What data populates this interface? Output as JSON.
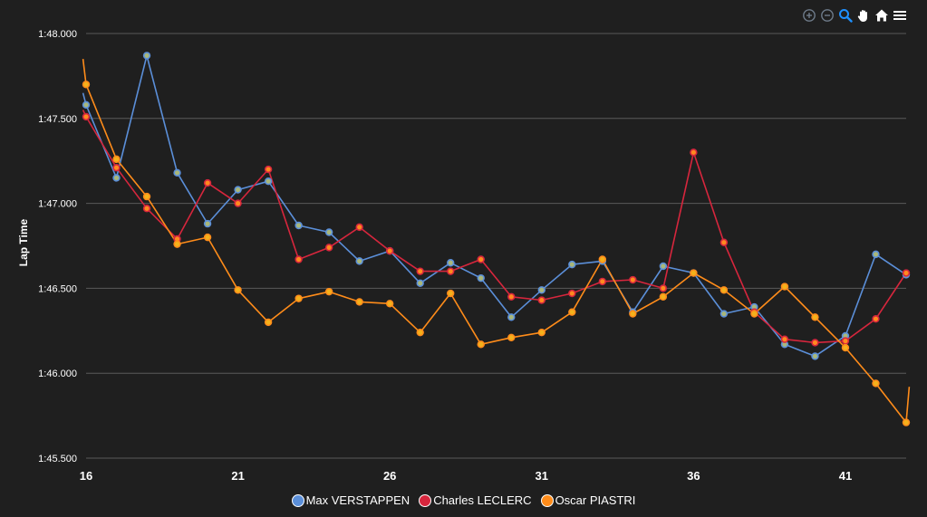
{
  "toolbar": {
    "icons": [
      "zoom-in-icon",
      "zoom-out-icon",
      "selection-zoom-icon",
      "pan-icon",
      "home-icon",
      "menu-icon"
    ],
    "active_color": "#1e90ff",
    "color": "#6e7b8a"
  },
  "chart_data": {
    "type": "line",
    "title": "",
    "xlabel": "",
    "ylabel": "Lap Time",
    "xlim": [
      16,
      43
    ],
    "ylim": [
      105.5,
      108.0
    ],
    "x_ticks": [
      16,
      21,
      26,
      31,
      36,
      41
    ],
    "y_ticks": [
      {
        "value": 108.0,
        "label": "1:48.000"
      },
      {
        "value": 107.5,
        "label": "1:47.500"
      },
      {
        "value": 107.0,
        "label": "1:47.000"
      },
      {
        "value": 106.5,
        "label": "1:46.500"
      },
      {
        "value": 106.0,
        "label": "1:46.000"
      },
      {
        "value": 105.5,
        "label": "1:45.500"
      }
    ],
    "grid": "horizontal",
    "legend_position": "bottom-center",
    "series": [
      {
        "name": "Max VERSTAPPEN",
        "color": "#5b8fd9",
        "marker_color": "#a9b77a",
        "lead_in": 107.65,
        "trail_out": null,
        "points": [
          [
            16,
            107.58
          ],
          [
            17,
            107.15
          ],
          [
            18,
            107.87
          ],
          [
            19,
            107.18
          ],
          [
            20,
            106.88
          ],
          [
            21,
            107.08
          ],
          [
            22,
            107.13
          ],
          [
            23,
            106.87
          ],
          [
            24,
            106.83
          ],
          [
            25,
            106.66
          ],
          [
            26,
            106.72
          ],
          [
            27,
            106.53
          ],
          [
            28,
            106.65
          ],
          [
            29,
            106.56
          ],
          [
            30,
            106.33
          ],
          [
            31,
            106.49
          ],
          [
            32,
            106.64
          ],
          [
            33,
            106.66
          ],
          [
            34,
            106.36
          ],
          [
            35,
            106.63
          ],
          [
            36,
            106.59
          ],
          [
            37,
            106.35
          ],
          [
            38,
            106.39
          ],
          [
            39,
            106.17
          ],
          [
            40,
            106.1
          ],
          [
            41,
            106.22
          ],
          [
            42,
            106.7
          ],
          [
            43,
            106.58
          ]
        ]
      },
      {
        "name": "Charles LECLERC",
        "color": "#d7263d",
        "marker_color": "#ff8a1f",
        "lead_in": 107.55,
        "trail_out": null,
        "points": [
          [
            16,
            107.51
          ],
          [
            17,
            107.21
          ],
          [
            18,
            106.97
          ],
          [
            19,
            106.79
          ],
          [
            20,
            107.12
          ],
          [
            21,
            107.0
          ],
          [
            22,
            107.2
          ],
          [
            23,
            106.67
          ],
          [
            24,
            106.74
          ],
          [
            25,
            106.86
          ],
          [
            26,
            106.72
          ],
          [
            27,
            106.6
          ],
          [
            28,
            106.6
          ],
          [
            29,
            106.67
          ],
          [
            30,
            106.45
          ],
          [
            31,
            106.43
          ],
          [
            32,
            106.47
          ],
          [
            33,
            106.54
          ],
          [
            34,
            106.55
          ],
          [
            35,
            106.5
          ],
          [
            36,
            107.3
          ],
          [
            37,
            106.77
          ],
          [
            38,
            106.36
          ],
          [
            39,
            106.2
          ],
          [
            40,
            106.18
          ],
          [
            41,
            106.19
          ],
          [
            42,
            106.32
          ],
          [
            43,
            106.59
          ]
        ]
      },
      {
        "name": "Oscar PIASTRI",
        "color": "#ff8c1a",
        "marker_color": "#f3b21c",
        "lead_in": 107.85,
        "trail_out": 105.92,
        "points": [
          [
            16,
            107.7
          ],
          [
            17,
            107.26
          ],
          [
            18,
            107.04
          ],
          [
            19,
            106.76
          ],
          [
            20,
            106.8
          ],
          [
            21,
            106.49
          ],
          [
            22,
            106.3
          ],
          [
            23,
            106.44
          ],
          [
            24,
            106.48
          ],
          [
            25,
            106.42
          ],
          [
            26,
            106.41
          ],
          [
            27,
            106.24
          ],
          [
            28,
            106.47
          ],
          [
            29,
            106.17
          ],
          [
            30,
            106.21
          ],
          [
            31,
            106.24
          ],
          [
            32,
            106.36
          ],
          [
            33,
            106.67
          ],
          [
            34,
            106.35
          ],
          [
            35,
            106.45
          ],
          [
            36,
            106.59
          ],
          [
            37,
            106.49
          ],
          [
            38,
            106.35
          ],
          [
            39,
            106.51
          ],
          [
            40,
            106.33
          ],
          [
            41,
            106.15
          ],
          [
            42,
            105.94
          ],
          [
            43,
            105.71
          ]
        ]
      }
    ]
  }
}
